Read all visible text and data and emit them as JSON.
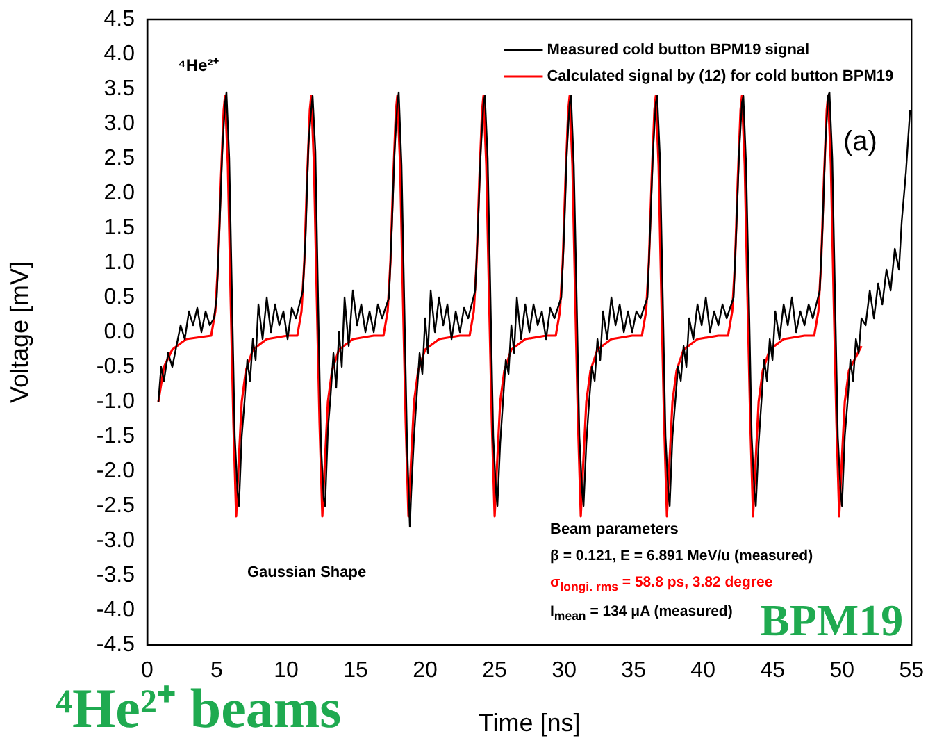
{
  "chart_data": {
    "type": "line",
    "xlabel": "Time [ns]",
    "ylabel": "Voltage [mV]",
    "xlim": [
      0,
      55
    ],
    "xticks": [
      0,
      5,
      10,
      15,
      20,
      25,
      30,
      35,
      40,
      45,
      50,
      55
    ],
    "ylim": [
      -4.5,
      4.5
    ],
    "yticks": [
      -4.5,
      {
        "value": -4,
        "label": "-4.0"
      },
      -3.5,
      {
        "value": -3,
        "label": "-3.0"
      },
      -2.5,
      {
        "value": -2,
        "label": "-2.0"
      },
      -1.5,
      {
        "value": -1,
        "label": "-1.0"
      },
      -0.5,
      {
        "value": 0,
        "label": "0.0"
      },
      0.5,
      {
        "value": 1,
        "label": "1.0"
      },
      1.5,
      {
        "value": 2,
        "label": "2.0"
      },
      2.5,
      {
        "value": 3,
        "label": "3.0"
      },
      3.5,
      {
        "value": 4,
        "label": "4.0"
      },
      4.5
    ],
    "grid": false,
    "legend": "top right",
    "marker": "none",
    "line_style": "solid",
    "series": [
      {
        "name": "Measured cold button BPM19 signal",
        "color": "#000000",
        "x": [
          0.8,
          1.0,
          1.2,
          1.5,
          1.8,
          2.1,
          2.4,
          2.7,
          3.0,
          3.3,
          3.6,
          3.9,
          4.2,
          4.5,
          4.8,
          5.0,
          5.2,
          5.4,
          5.6,
          5.7,
          5.9,
          6.1,
          6.3,
          6.5,
          6.6,
          6.8,
          7.0,
          7.2,
          7.4,
          7.6,
          7.8,
          8.0,
          8.3,
          8.6,
          8.9,
          9.2,
          9.5,
          9.8,
          10.1,
          10.4,
          10.7,
          11.2,
          11.4,
          11.6,
          11.8,
          11.9,
          12.1,
          12.3,
          12.5,
          12.7,
          12.8,
          13.0,
          13.2,
          13.4,
          13.6,
          13.8,
          14.0,
          14.2,
          14.5,
          14.8,
          15.1,
          15.4,
          15.7,
          16.0,
          16.3,
          16.6,
          16.9,
          17.4,
          17.6,
          17.8,
          18.0,
          18.1,
          18.3,
          18.5,
          18.7,
          18.9,
          19.0,
          19.2,
          19.4,
          19.6,
          19.8,
          20.0,
          20.2,
          20.4,
          20.7,
          21.0,
          21.3,
          21.6,
          21.9,
          22.2,
          22.5,
          22.8,
          23.1,
          23.6,
          23.8,
          24.0,
          24.2,
          24.3,
          24.5,
          24.7,
          24.9,
          25.1,
          25.2,
          25.4,
          25.6,
          25.8,
          26.0,
          26.2,
          26.4,
          26.6,
          26.9,
          27.2,
          27.5,
          27.8,
          28.1,
          28.4,
          28.7,
          29.0,
          29.3,
          29.8,
          30.0,
          30.2,
          30.4,
          30.5,
          30.7,
          30.9,
          31.1,
          31.3,
          31.4,
          31.6,
          31.8,
          32.0,
          32.2,
          32.4,
          32.6,
          32.8,
          33.1,
          33.4,
          33.7,
          34.0,
          34.3,
          34.6,
          34.9,
          35.2,
          35.5,
          36.0,
          36.2,
          36.4,
          36.6,
          36.7,
          36.9,
          37.1,
          37.3,
          37.5,
          37.6,
          37.8,
          38.0,
          38.2,
          38.4,
          38.6,
          38.8,
          39.0,
          39.3,
          39.6,
          39.9,
          40.2,
          40.5,
          40.8,
          41.1,
          41.4,
          41.7,
          42.2,
          42.4,
          42.6,
          42.8,
          42.9,
          43.1,
          43.3,
          43.5,
          43.7,
          43.8,
          44.0,
          44.2,
          44.4,
          44.6,
          44.8,
          45.0,
          45.2,
          45.5,
          45.8,
          46.1,
          46.4,
          46.7,
          47.0,
          47.3,
          47.6,
          47.9,
          48.4,
          48.6,
          48.8,
          49.0,
          49.1,
          49.3,
          49.5,
          49.7,
          49.9,
          50.0,
          50.2,
          50.4,
          50.6,
          50.8,
          51.0,
          51.2,
          51.4,
          51.7,
          52.0,
          52.3,
          52.6,
          52.9,
          53.2,
          53.5,
          53.8,
          54.1,
          54.3,
          54.6,
          54.9
        ],
        "values": [
          -1.0,
          -0.5,
          -0.7,
          -0.3,
          -0.5,
          -0.2,
          0.1,
          -0.1,
          0.3,
          0.1,
          0.35,
          0.0,
          0.3,
          0.1,
          0.2,
          0.5,
          1.5,
          2.6,
          3.3,
          3.45,
          2.5,
          0.5,
          -1.5,
          -2.3,
          -2.5,
          -1.5,
          -1.0,
          -0.4,
          -0.7,
          -0.1,
          -0.4,
          0.4,
          -0.1,
          0.5,
          0.0,
          0.4,
          0.1,
          0.3,
          -0.1,
          0.35,
          0.2,
          0.6,
          1.4,
          2.7,
          3.2,
          3.4,
          2.6,
          0.4,
          -1.6,
          -2.4,
          -2.5,
          -1.4,
          -0.9,
          -0.3,
          -0.8,
          0.0,
          -0.5,
          0.5,
          -0.2,
          0.6,
          0.1,
          0.4,
          0.0,
          0.3,
          0.0,
          0.4,
          0.2,
          0.5,
          1.5,
          2.6,
          3.3,
          3.45,
          2.4,
          0.4,
          -1.6,
          -2.8,
          -2.3,
          -1.5,
          -0.9,
          -0.3,
          -0.6,
          0.2,
          -0.3,
          0.6,
          0.0,
          0.5,
          0.1,
          0.4,
          -0.1,
          0.3,
          0.0,
          0.35,
          0.2,
          0.6,
          1.5,
          2.6,
          3.3,
          3.4,
          2.5,
          0.5,
          -1.5,
          -2.3,
          -2.5,
          -1.6,
          -1.0,
          -0.4,
          -0.6,
          0.1,
          -0.3,
          0.5,
          -0.1,
          0.4,
          0.0,
          0.4,
          0.1,
          0.3,
          -0.1,
          0.35,
          0.2,
          0.5,
          1.4,
          2.6,
          3.3,
          3.4,
          2.4,
          0.5,
          -1.5,
          -2.3,
          -2.5,
          -1.6,
          -1.0,
          -0.5,
          -0.7,
          -0.1,
          -0.4,
          0.3,
          -0.1,
          0.5,
          0.1,
          0.4,
          0.0,
          0.3,
          0.0,
          0.3,
          0.2,
          0.5,
          1.5,
          2.6,
          3.3,
          3.4,
          2.5,
          0.5,
          -1.5,
          -2.3,
          -2.5,
          -1.5,
          -1.0,
          -0.5,
          -0.7,
          -0.2,
          -0.5,
          0.2,
          -0.1,
          0.4,
          0.1,
          0.5,
          0.0,
          0.3,
          0.1,
          0.4,
          0.2,
          0.5,
          1.5,
          2.6,
          3.3,
          3.4,
          2.4,
          0.5,
          -1.5,
          -2.3,
          -2.5,
          -1.6,
          -1.0,
          -0.4,
          -0.7,
          -0.1,
          -0.4,
          0.3,
          -0.1,
          0.4,
          0.1,
          0.5,
          0.0,
          0.3,
          0.1,
          0.4,
          0.2,
          0.6,
          1.5,
          2.7,
          3.4,
          3.45,
          2.5,
          0.5,
          -1.5,
          -2.3,
          -2.5,
          -1.5,
          -1.0,
          -0.4,
          -0.7,
          -0.1,
          -0.3,
          0.2,
          0.1,
          0.6,
          0.2,
          0.7,
          0.4,
          0.9,
          0.6,
          1.2,
          0.9,
          1.6,
          2.3,
          3.2
        ]
      },
      {
        "name": "Calculated signal by (12) for cold button BPM19",
        "color": "#ff0000",
        "x": [
          0.8,
          1.2,
          1.8,
          2.8,
          4.6,
          4.9,
          5.1,
          5.3,
          5.5,
          5.6,
          5.8,
          6.0,
          6.2,
          6.4,
          6.6,
          6.8,
          7.1,
          7.6,
          8.6,
          10.1,
          10.8,
          11.1,
          11.3,
          11.5,
          11.7,
          11.8,
          12.0,
          12.2,
          12.4,
          12.6,
          12.8,
          13.0,
          13.3,
          13.8,
          14.8,
          16.3,
          17.0,
          17.3,
          17.5,
          17.7,
          17.9,
          18.0,
          18.2,
          18.4,
          18.6,
          18.8,
          19.0,
          19.2,
          19.5,
          20.0,
          21.0,
          22.5,
          23.2,
          23.5,
          23.7,
          23.9,
          24.1,
          24.2,
          24.4,
          24.6,
          24.8,
          25.0,
          25.2,
          25.4,
          25.7,
          26.2,
          27.2,
          28.7,
          29.4,
          29.7,
          29.9,
          30.1,
          30.3,
          30.4,
          30.6,
          30.8,
          31.0,
          31.2,
          31.4,
          31.6,
          31.9,
          32.4,
          33.4,
          34.9,
          35.6,
          35.9,
          36.1,
          36.3,
          36.5,
          36.6,
          36.8,
          37.0,
          37.2,
          37.4,
          37.6,
          37.8,
          38.1,
          38.6,
          39.6,
          41.1,
          41.8,
          42.1,
          42.3,
          42.5,
          42.7,
          42.8,
          43.0,
          43.2,
          43.4,
          43.6,
          43.8,
          44.0,
          44.3,
          44.8,
          45.8,
          47.3,
          48.0,
          48.3,
          48.5,
          48.7,
          48.9,
          49.0,
          49.2,
          49.4,
          49.6,
          49.8,
          50.0,
          50.2,
          50.5,
          51.4
        ],
        "values": [
          -1.0,
          -0.5,
          -0.25,
          -0.1,
          -0.05,
          0.3,
          1.0,
          2.2,
          3.2,
          3.4,
          2.4,
          0.5,
          -1.3,
          -2.65,
          -1.8,
          -1.0,
          -0.55,
          -0.25,
          -0.1,
          -0.05,
          -0.05,
          0.3,
          1.0,
          2.2,
          3.2,
          3.4,
          2.4,
          0.5,
          -1.3,
          -2.65,
          -1.8,
          -1.0,
          -0.55,
          -0.25,
          -0.1,
          -0.05,
          -0.05,
          0.3,
          1.0,
          2.2,
          3.2,
          3.4,
          2.4,
          0.5,
          -1.3,
          -2.65,
          -1.8,
          -1.0,
          -0.55,
          -0.25,
          -0.1,
          -0.05,
          -0.05,
          0.3,
          1.0,
          2.2,
          3.2,
          3.4,
          2.4,
          0.5,
          -1.3,
          -2.65,
          -1.8,
          -1.0,
          -0.55,
          -0.25,
          -0.1,
          -0.05,
          -0.05,
          0.3,
          1.0,
          2.2,
          3.2,
          3.4,
          2.4,
          0.5,
          -1.3,
          -2.65,
          -1.8,
          -1.0,
          -0.55,
          -0.25,
          -0.1,
          -0.05,
          -0.05,
          0.3,
          1.0,
          2.2,
          3.2,
          3.4,
          2.4,
          0.5,
          -1.3,
          -2.65,
          -1.8,
          -1.0,
          -0.55,
          -0.25,
          -0.1,
          -0.05,
          -0.05,
          0.3,
          1.0,
          2.2,
          3.2,
          3.4,
          2.4,
          0.5,
          -1.3,
          -2.65,
          -1.8,
          -1.0,
          -0.55,
          -0.25,
          -0.1,
          -0.05,
          -0.05,
          0.3,
          1.0,
          2.2,
          3.2,
          3.4,
          2.4,
          0.5,
          -1.3,
          -2.65,
          -1.8,
          -1.0,
          -0.55,
          -0.2
        ]
      }
    ],
    "annotations": [
      "⁴He²⁺",
      "(a)",
      "Gaussian Shape",
      "Beam parameters",
      "β = 0.121, E = 6.891 MeV/u (measured)",
      "σ$_{longi. rms}$ = 58.8 ps, 3.82 degree",
      "I$_{mean}$ = 134 μA (measured)",
      "BPM19",
      "⁴He²⁺ beams"
    ]
  }
}
